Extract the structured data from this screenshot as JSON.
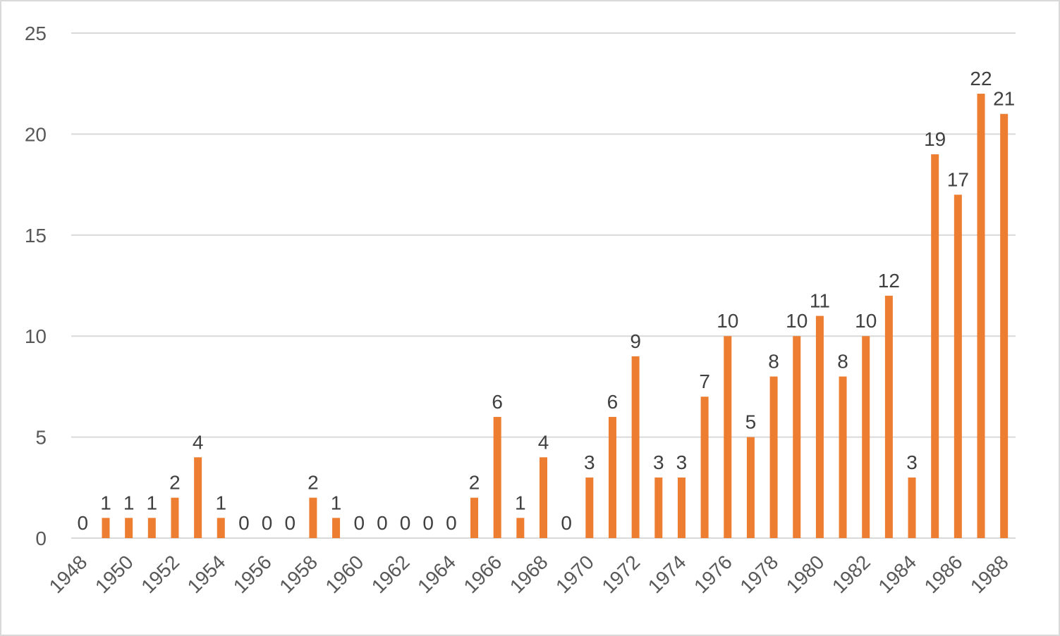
{
  "chart_data": {
    "type": "bar",
    "title": "",
    "xlabel": "",
    "ylabel": "",
    "ylim": [
      0,
      25
    ],
    "yticks": [
      0,
      5,
      10,
      15,
      20,
      25
    ],
    "grid": true,
    "legend": null,
    "bar_color": "#ED7D31",
    "categories": [
      "1948",
      "1949",
      "1950",
      "1951",
      "1952",
      "1953",
      "1954",
      "1955",
      "1956",
      "1957",
      "1958",
      "1959",
      "1960",
      "1961",
      "1962",
      "1963",
      "1964",
      "1965",
      "1966",
      "1967",
      "1968",
      "1969",
      "1970",
      "1971",
      "1972",
      "1973",
      "1974",
      "1975",
      "1976",
      "1977",
      "1978",
      "1979",
      "1980",
      "1981",
      "1982",
      "1983",
      "1984",
      "1985",
      "1986",
      "1987",
      "1988"
    ],
    "values": [
      0,
      1,
      1,
      1,
      2,
      4,
      1,
      0,
      0,
      0,
      2,
      1,
      0,
      0,
      0,
      0,
      0,
      2,
      6,
      1,
      4,
      0,
      3,
      6,
      9,
      3,
      3,
      7,
      10,
      5,
      8,
      10,
      11,
      8,
      10,
      12,
      3,
      19,
      17,
      22,
      21
    ],
    "visible_x_tick_labels": [
      "1948",
      "1950",
      "1952",
      "1954",
      "1956",
      "1958",
      "1960",
      "1962",
      "1964",
      "1966",
      "1968",
      "1970",
      "1972",
      "1974",
      "1976",
      "1978",
      "1980",
      "1982",
      "1984",
      "1986",
      "1988"
    ],
    "data_labels": true
  }
}
